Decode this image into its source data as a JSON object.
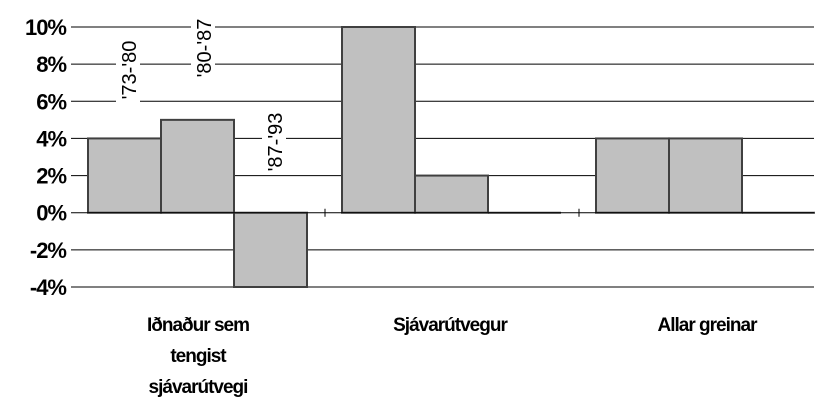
{
  "chart_data": {
    "type": "bar",
    "categories": [
      [
        "Iðnaður sem",
        "tengist",
        "sjávarútvegi"
      ],
      [
        "Sjávarútvegur"
      ],
      [
        "Allar greinar"
      ]
    ],
    "series": [
      {
        "name": "'73-'80",
        "values": [
          4,
          10,
          4
        ]
      },
      {
        "name": "'80-'87",
        "values": [
          5,
          2,
          4
        ]
      },
      {
        "name": "'87-'93",
        "values": [
          -4,
          0,
          0
        ]
      }
    ],
    "y_tick_labels": [
      "10%",
      "8%",
      "6%",
      "4%",
      "2%",
      "0%",
      "-2%",
      "-4%"
    ],
    "ylim": [
      -4,
      10
    ],
    "y_tick_step": 2,
    "grid": true,
    "legend": "series names written vertically above the first category's bars",
    "colors": {
      "bar_fill": "#c0c0c0",
      "bar_stroke": "#404040",
      "grid": "#000000",
      "text": "#000000"
    },
    "title": "",
    "xlabel": "",
    "ylabel": ""
  }
}
